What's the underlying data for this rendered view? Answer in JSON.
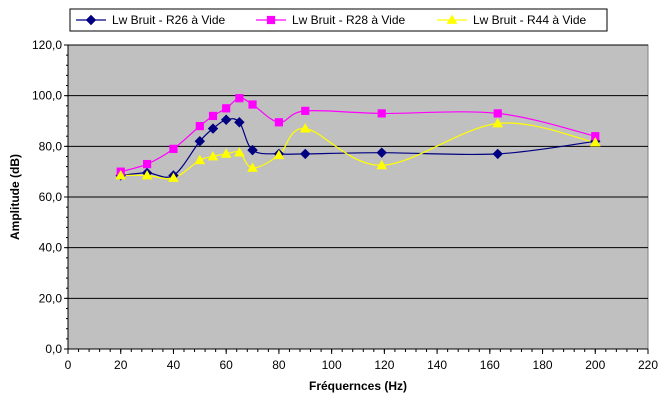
{
  "chart_data": {
    "type": "line",
    "title": "",
    "xlabel": "Fréquernces (Hz)",
    "ylabel": "Amplitude (dB)",
    "xlim": [
      0,
      220
    ],
    "ylim": [
      0,
      120
    ],
    "x_ticks": [
      0,
      20,
      40,
      60,
      80,
      100,
      120,
      140,
      160,
      180,
      200,
      220
    ],
    "y_ticks": [
      0,
      20,
      40,
      60,
      80,
      100,
      120
    ],
    "x_tick_labels": [
      "0",
      "20",
      "40",
      "60",
      "80",
      "100",
      "120",
      "140",
      "160",
      "180",
      "200",
      "220"
    ],
    "y_tick_labels": [
      "0,0",
      "20,0",
      "40,0",
      "60,0",
      "80,0",
      "100,0",
      "120,0"
    ],
    "grid": "horizontal",
    "plot_background": "#c0c0c0",
    "legend_position": "top",
    "series": [
      {
        "name": "Lw  Bruit - R26 à Vide",
        "color": "#000080",
        "marker": "diamond",
        "x": [
          20,
          30,
          40,
          50,
          55,
          60,
          65,
          70,
          80,
          90,
          119,
          163,
          200
        ],
        "y": [
          68.5,
          69.5,
          68.5,
          82,
          87,
          90.5,
          89.5,
          78.5,
          77,
          77,
          77.5,
          77,
          82
        ]
      },
      {
        "name": "Lw  Bruit - R28 à Vide",
        "color": "#ff00ff",
        "marker": "square",
        "x": [
          20,
          30,
          40,
          50,
          55,
          60,
          65,
          70,
          80,
          90,
          119,
          163,
          200
        ],
        "y": [
          70,
          73,
          79,
          88,
          92,
          95,
          99,
          96.5,
          89.5,
          94,
          93,
          93,
          84
        ]
      },
      {
        "name": "Lw  Bruit - R44 à Vide",
        "color": "#ffff00",
        "marker": "triangle",
        "x": [
          20,
          30,
          40,
          50,
          55,
          60,
          65,
          70,
          80,
          90,
          119,
          163,
          200
        ],
        "y": [
          68.5,
          68.5,
          67.5,
          74.5,
          76,
          77,
          77.5,
          71.5,
          76.5,
          87,
          72.5,
          89,
          81.5
        ]
      }
    ]
  }
}
